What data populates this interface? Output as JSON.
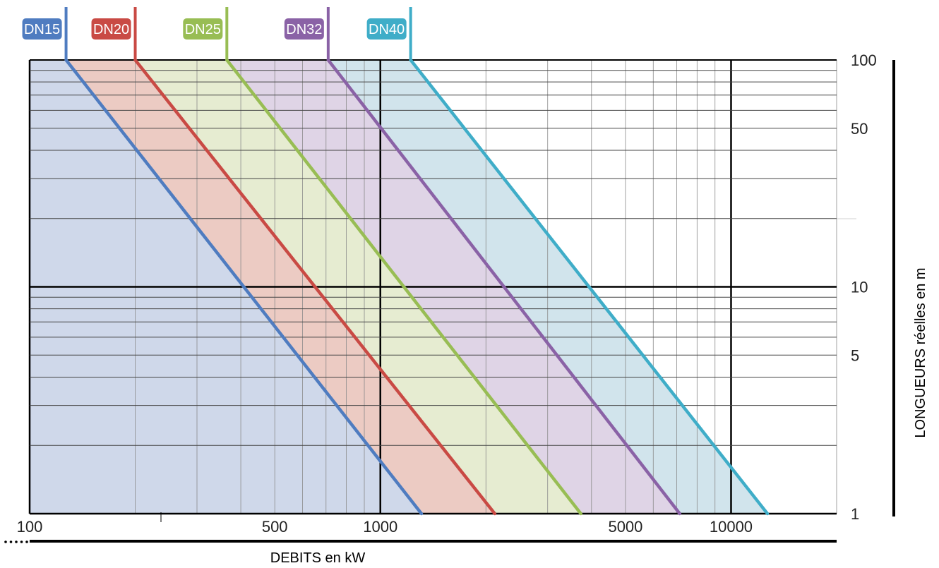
{
  "chart_data": {
    "type": "line",
    "x_scale": "log",
    "y_scale": "log",
    "xlabel": "DEBITS en kW",
    "ylabel": "LONGUEURS réelles en m",
    "xlim": [
      100,
      20000
    ],
    "ylim": [
      1,
      100
    ],
    "x_tick_labels": [
      {
        "value": 100,
        "label": "100"
      },
      {
        "value": 500,
        "label": "500"
      },
      {
        "value": 1000,
        "label": "1000"
      },
      {
        "value": 5000,
        "label": "5000"
      },
      {
        "value": 10000,
        "label": "10000"
      }
    ],
    "y_tick_labels": [
      {
        "value": 100,
        "label": "100"
      },
      {
        "value": 50,
        "label": "50"
      },
      {
        "value": 10,
        "label": "10"
      },
      {
        "value": 5,
        "label": "5"
      },
      {
        "value": 1,
        "label": "1"
      }
    ],
    "grid": true,
    "legend_position": "top",
    "series": [
      {
        "name": "DN15",
        "color": "#4f7cc0",
        "fill": "#cfd8ea",
        "points": [
          [
            127,
            100
          ],
          [
            1310,
            1
          ]
        ]
      },
      {
        "name": "DN20",
        "color": "#c94a44",
        "fill": "#eccbc3",
        "points": [
          [
            200,
            100
          ],
          [
            2120,
            1
          ]
        ]
      },
      {
        "name": "DN25",
        "color": "#98bd54",
        "fill": "#e6ecd1",
        "points": [
          [
            365,
            100
          ],
          [
            3730,
            1
          ]
        ]
      },
      {
        "name": "DN32",
        "color": "#8a62a6",
        "fill": "#dfd4e6",
        "points": [
          [
            710,
            100
          ],
          [
            7140,
            1
          ]
        ]
      },
      {
        "name": "DN40",
        "color": "#3fadc8",
        "fill": "#d1e4ec",
        "points": [
          [
            1220,
            100
          ],
          [
            12700,
            1
          ]
        ]
      }
    ]
  }
}
